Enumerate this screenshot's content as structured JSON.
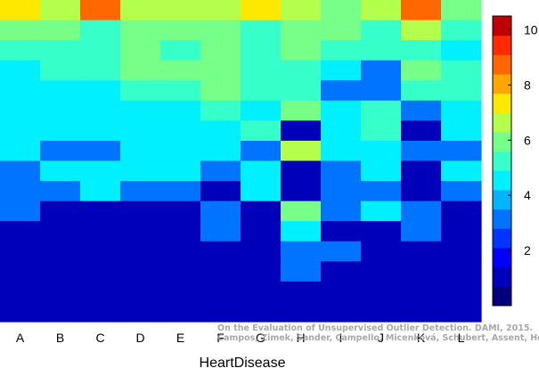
{
  "chart_data": {
    "type": "heatmap",
    "xlabel": "HeartDisease",
    "ylabel": "",
    "x_categories": [
      "A",
      "B",
      "C",
      "D",
      "E",
      "F",
      "G",
      "H",
      "I",
      "J",
      "K",
      "L"
    ],
    "colorbar": {
      "range": [
        0,
        10.5
      ],
      "ticks": [
        2,
        4,
        6,
        8,
        10
      ],
      "levels": 14,
      "colors": [
        "#00007f",
        "#0000bb",
        "#0000f8",
        "#0034ff",
        "#0074ff",
        "#00b4ff",
        "#00f0ff",
        "#36ffc9",
        "#76ff89",
        "#b4ff4b",
        "#ffe800",
        "#ffa600",
        "#ff6700",
        "#ff2a00",
        "#bf0000"
      ]
    },
    "cells_top_to_bottom": [
      [
        7.2,
        6.5,
        9.1,
        6.5,
        6.5,
        6.5,
        7.6,
        6.5,
        5.8,
        6.5,
        9.1,
        5.8
      ],
      [
        5.8,
        5.8,
        5.1,
        5.8,
        5.8,
        5.8,
        5.1,
        5.8,
        5.8,
        5.1,
        6.5,
        5.1
      ],
      [
        5.1,
        5.1,
        5.1,
        5.8,
        5.1,
        5.8,
        5.1,
        5.8,
        5.1,
        5.1,
        5.1,
        4.4
      ],
      [
        4.4,
        5.1,
        5.1,
        5.8,
        5.8,
        5.8,
        5.1,
        5.1,
        4.4,
        3.0,
        5.8,
        5.1
      ],
      [
        4.4,
        4.4,
        4.4,
        5.1,
        5.1,
        5.8,
        5.1,
        5.1,
        3.0,
        3.0,
        5.1,
        5.1
      ],
      [
        4.4,
        4.4,
        4.4,
        4.4,
        4.4,
        5.1,
        4.4,
        5.8,
        4.4,
        5.1,
        3.0,
        4.4
      ],
      [
        4.4,
        4.4,
        4.4,
        4.4,
        4.4,
        4.4,
        5.1,
        1.0,
        4.4,
        5.1,
        1.0,
        4.4
      ],
      [
        4.4,
        3.0,
        3.0,
        4.4,
        4.4,
        4.4,
        3.0,
        6.5,
        4.4,
        4.4,
        3.0,
        3.0
      ],
      [
        3.0,
        4.4,
        4.4,
        4.4,
        4.4,
        3.0,
        4.4,
        1.0,
        3.0,
        4.4,
        1.0,
        4.4
      ],
      [
        3.0,
        3.0,
        4.4,
        3.0,
        3.0,
        1.0,
        4.4,
        1.0,
        3.0,
        3.0,
        1.0,
        3.0
      ],
      [
        3.0,
        1.0,
        1.0,
        1.0,
        1.0,
        3.0,
        1.0,
        5.8,
        3.0,
        4.4,
        3.0,
        1.0
      ],
      [
        1.0,
        1.0,
        1.0,
        1.0,
        1.0,
        3.0,
        1.0,
        4.4,
        1.0,
        1.0,
        3.0,
        1.0
      ],
      [
        1.0,
        1.0,
        1.0,
        1.0,
        1.0,
        1.0,
        1.0,
        3.0,
        3.0,
        1.0,
        1.0,
        1.0
      ],
      [
        1.0,
        1.0,
        1.0,
        1.0,
        1.0,
        1.0,
        1.0,
        3.0,
        1.0,
        1.0,
        1.0,
        1.0
      ],
      [
        1.0,
        1.0,
        1.0,
        1.0,
        1.0,
        1.0,
        1.0,
        1.0,
        1.0,
        1.0,
        1.0,
        1.0
      ],
      [
        1.0,
        1.0,
        1.0,
        1.0,
        1.0,
        1.0,
        1.0,
        1.0,
        1.0,
        1.0,
        1.0,
        1.0
      ]
    ],
    "grid": false,
    "legend": "colorbar-right"
  },
  "citation": {
    "line1": "On the Evaluation of Unsupervised Outlier Detection. DAMI, 2015.",
    "line2": "Campos, Zimek, Sander, Campello, Micenková, Schubert, Assent, Houle"
  }
}
